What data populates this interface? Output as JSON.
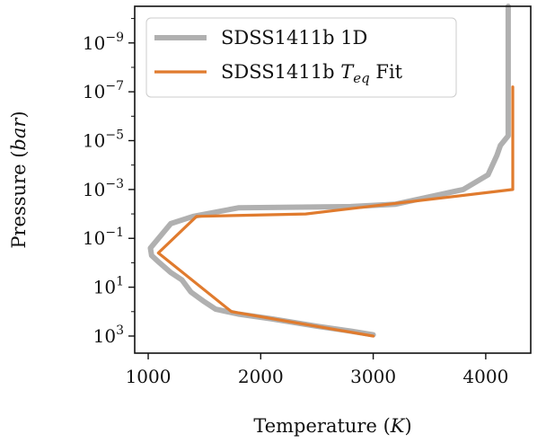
{
  "chart_data": {
    "type": "line",
    "xlabel": "Temperature (K)",
    "xlabel_parts": {
      "text": "Temperature (",
      "var": "K",
      "close": ")"
    },
    "ylabel": "Pressure (bar)",
    "ylabel_parts": {
      "text": "Pressure (",
      "var": "bar",
      "close": ")"
    },
    "xlim": [
      880,
      4400
    ],
    "ylim_log10_pressure_bar": [
      -10.5,
      3.7
    ],
    "y_scale": "log",
    "y_inverted": true,
    "x_ticks": [
      {
        "value": 1000,
        "label": "1000"
      },
      {
        "value": 2000,
        "label": "2000"
      },
      {
        "value": 3000,
        "label": "3000"
      },
      {
        "value": 4000,
        "label": "4000"
      }
    ],
    "y_ticks": [
      {
        "log10": -9,
        "base": "10",
        "exp": "−9"
      },
      {
        "log10": -7,
        "base": "10",
        "exp": "−7"
      },
      {
        "log10": -5,
        "base": "10",
        "exp": "−5"
      },
      {
        "log10": -3,
        "base": "10",
        "exp": "−3"
      },
      {
        "log10": -1,
        "base": "10",
        "exp": "−1"
      },
      {
        "log10": 1,
        "base": "10",
        "exp": "1"
      },
      {
        "log10": 3,
        "base": "10",
        "exp": "3"
      }
    ],
    "legend": {
      "position": "top-left"
    },
    "series": [
      {
        "name": "SDSS1411b 1D",
        "name_parts": {
          "text": "SDSS1411b 1D",
          "sub": ""
        },
        "color": "#b0b0b0",
        "points": [
          [
            4200,
            -10.5
          ],
          [
            4200,
            -5.2
          ],
          [
            4130,
            -4.8
          ],
          [
            4100,
            -4.4
          ],
          [
            4020,
            -3.6
          ],
          [
            3800,
            -3.0
          ],
          [
            3600,
            -2.8
          ],
          [
            3200,
            -2.4
          ],
          [
            2800,
            -2.3
          ],
          [
            1800,
            -2.25
          ],
          [
            1400,
            -1.9
          ],
          [
            1200,
            -1.6
          ],
          [
            1020,
            -0.6
          ],
          [
            1030,
            -0.3
          ],
          [
            1100,
            0.0
          ],
          [
            1200,
            0.4
          ],
          [
            1300,
            0.7
          ],
          [
            1380,
            1.2
          ],
          [
            1500,
            1.6
          ],
          [
            1600,
            1.9
          ],
          [
            1800,
            2.1
          ],
          [
            2100,
            2.3
          ],
          [
            2500,
            2.6
          ],
          [
            2800,
            2.8
          ],
          [
            3000,
            2.95
          ]
        ]
      },
      {
        "name": "SDSS1411b Teq Fit",
        "name_parts": {
          "text": "SDSS1411b ",
          "var": "T",
          "sub": "eq",
          "after": " Fit"
        },
        "color": "#e07b2e",
        "points": [
          [
            4240,
            -7.2
          ],
          [
            4240,
            -3.0
          ],
          [
            2400,
            -2.0
          ],
          [
            1430,
            -1.9
          ],
          [
            1090,
            -0.4
          ],
          [
            1740,
            2.0
          ],
          [
            3000,
            3.0
          ]
        ]
      }
    ]
  }
}
